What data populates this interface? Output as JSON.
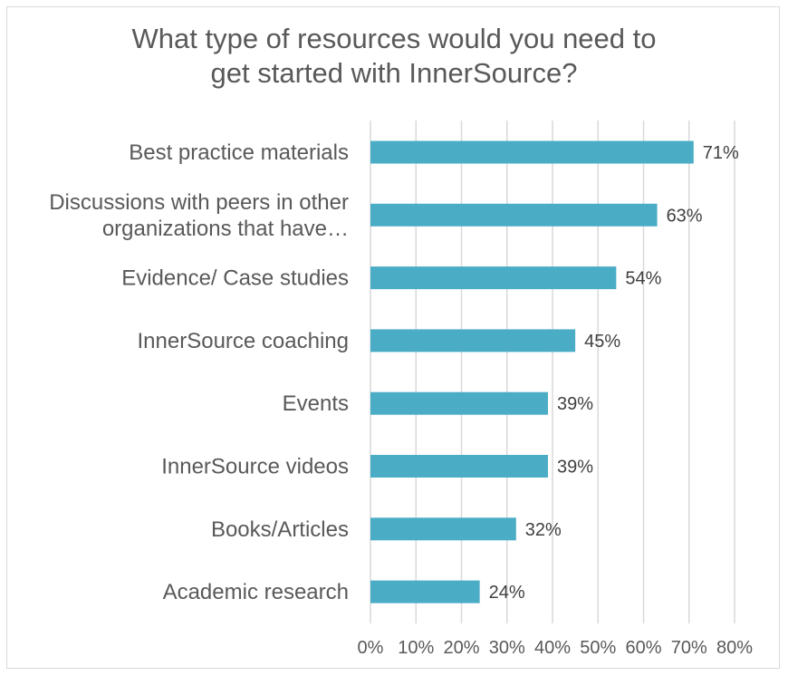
{
  "chart_data": {
    "type": "bar",
    "orientation": "horizontal",
    "title": [
      "What type of resources would you need to",
      "get started with InnerSource?"
    ],
    "categories": [
      [
        "Best practice materials"
      ],
      [
        "Discussions with peers in other",
        "organizations that have…"
      ],
      [
        "Evidence/ Case studies"
      ],
      [
        "InnerSource coaching"
      ],
      [
        "Events"
      ],
      [
        "InnerSource videos"
      ],
      [
        "Books/Articles"
      ],
      [
        "Academic research"
      ]
    ],
    "values": [
      71,
      63,
      54,
      45,
      39,
      39,
      32,
      24
    ],
    "value_labels": [
      "71%",
      "63%",
      "54%",
      "45%",
      "39%",
      "39%",
      "32%",
      "24%"
    ],
    "xlim": [
      0,
      80
    ],
    "x_ticks": [
      0,
      10,
      20,
      30,
      40,
      50,
      60,
      70,
      80
    ],
    "x_tick_labels": [
      "0%",
      "10%",
      "20%",
      "30%",
      "40%",
      "50%",
      "60%",
      "70%",
      "80%"
    ],
    "xlabel": "",
    "ylabel": "",
    "grid": true,
    "legend": "none",
    "bar_color": "#4bacc6"
  }
}
